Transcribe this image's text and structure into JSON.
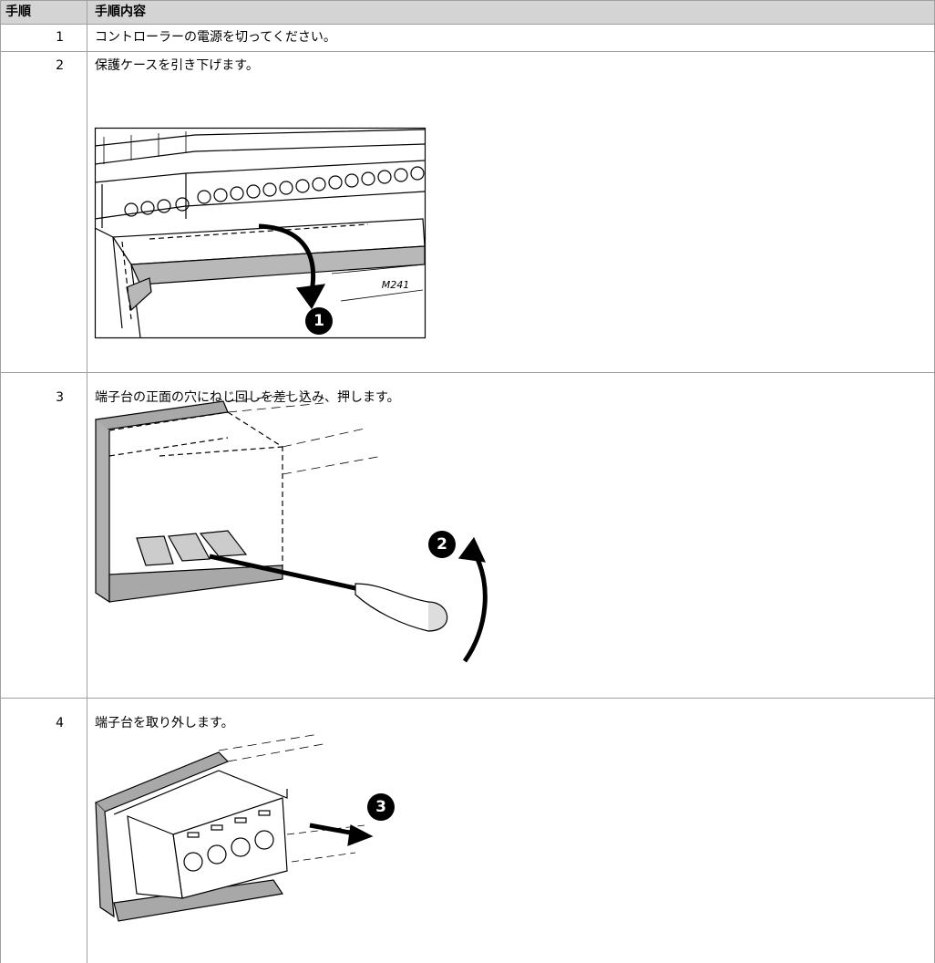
{
  "table": {
    "headers": [
      "手順",
      "手順内容"
    ],
    "rows": [
      {
        "step": 1,
        "text": "コントローラーの電源を切ってください。"
      },
      {
        "step": 2,
        "text": "保護ケースを引き下げます。",
        "callout": 1,
        "label": "M241"
      },
      {
        "step": 3,
        "text": "端子台の正面の穴にねじ回しを差し込み、押します。",
        "callout": 2
      },
      {
        "step": 4,
        "text": "端子台を取り外します。",
        "callout": 3
      }
    ]
  }
}
